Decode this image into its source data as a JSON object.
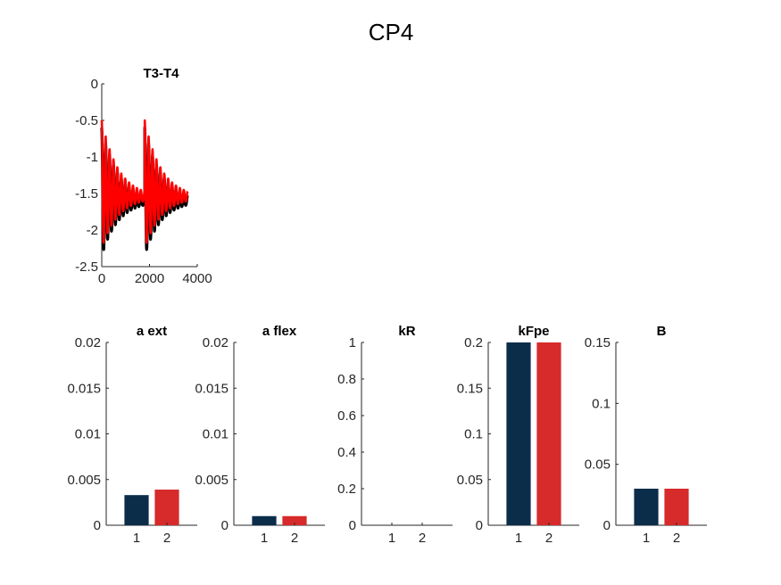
{
  "figure": {
    "title": "CP4"
  },
  "colors": {
    "dark_bar": "#0b2d4a",
    "red_bar": "#d72a2a",
    "line_black": "#000000",
    "line_red": "#ff0000",
    "axis": "#262626"
  },
  "chart_data": [
    {
      "type": "line",
      "title": "T3-T4",
      "xlim": [
        0,
        4000
      ],
      "ylim": [
        -2.5,
        0
      ],
      "xticks": [
        "0",
        "2000",
        "4000"
      ],
      "yticks": [
        "0",
        "-0.5",
        "-1",
        "-1.5",
        "-2",
        "-2.5"
      ],
      "xtick_values": [
        0,
        2000,
        4000
      ],
      "ytick_values": [
        0,
        -0.5,
        -1,
        -1.5,
        -2,
        -2.5
      ],
      "series": [
        {
          "color": "#000000",
          "cycles": [
            [
              0,
              1800
            ],
            [
              1800,
              3600
            ]
          ],
          "start": -0.6,
          "low_start": -2.35,
          "settle": -1.6,
          "osc_amp_hi": 0.95,
          "osc_amp_lo": 0.75,
          "x_end": 3600
        },
        {
          "color": "#ff0000",
          "cycles": [
            [
              0,
              1800
            ],
            [
              1800,
              3600
            ]
          ],
          "start": -0.5,
          "low_start": -2.25,
          "settle": -1.55,
          "osc_amp_hi": 0.9,
          "osc_amp_lo": 0.7,
          "x_end": 3600
        }
      ]
    },
    {
      "type": "bar",
      "title": "a ext",
      "categories": [
        "1",
        "2"
      ],
      "values": [
        0.0033,
        0.0039
      ],
      "ylim": [
        0,
        0.02
      ],
      "yticks": [
        "0",
        "0.005",
        "0.01",
        "0.015",
        "0.02"
      ],
      "ytick_values": [
        0,
        0.005,
        0.01,
        0.015,
        0.02
      ]
    },
    {
      "type": "bar",
      "title": "a flex",
      "categories": [
        "1",
        "2"
      ],
      "values": [
        0.001,
        0.001
      ],
      "ylim": [
        0,
        0.02
      ],
      "yticks": [
        "0",
        "0.005",
        "0.01",
        "0.015",
        "0.02"
      ],
      "ytick_values": [
        0,
        0.005,
        0.01,
        0.015,
        0.02
      ]
    },
    {
      "type": "bar",
      "title": "kR",
      "categories": [
        "1",
        "2"
      ],
      "values": [
        0,
        0
      ],
      "ylim": [
        0,
        1
      ],
      "yticks": [
        "0",
        "0.2",
        "0.4",
        "0.6",
        "0.8",
        "1"
      ],
      "ytick_values": [
        0,
        0.2,
        0.4,
        0.6,
        0.8,
        1
      ]
    },
    {
      "type": "bar",
      "title": "kFpe",
      "categories": [
        "1",
        "2"
      ],
      "values": [
        0.2,
        0.2
      ],
      "ylim": [
        0,
        0.2
      ],
      "yticks": [
        "0",
        "0.05",
        "0.1",
        "0.15",
        "0.2"
      ],
      "ytick_values": [
        0,
        0.05,
        0.1,
        0.15,
        0.2
      ]
    },
    {
      "type": "bar",
      "title": "B",
      "categories": [
        "1",
        "2"
      ],
      "values": [
        0.03,
        0.03
      ],
      "ylim": [
        0,
        0.15
      ],
      "yticks": [
        "0",
        "0.05",
        "0.1",
        "0.15"
      ],
      "ytick_values": [
        0,
        0.05,
        0.1,
        0.15
      ]
    }
  ]
}
